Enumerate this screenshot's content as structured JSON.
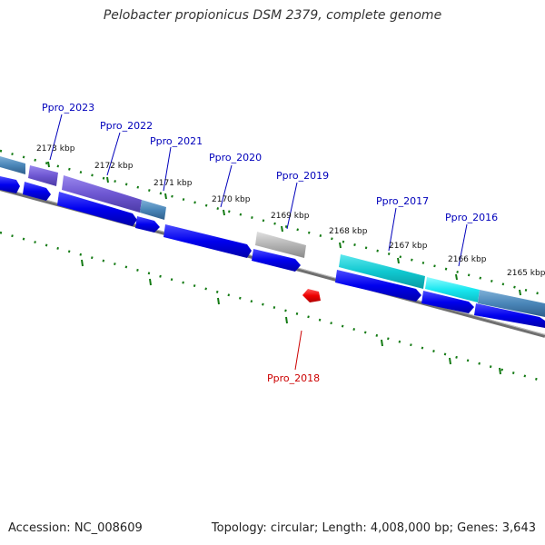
{
  "title": "Pelobacter propionicus DSM 2379, complete genome",
  "footer": {
    "accession": "Accession: NC_008609",
    "summary": "Topology: circular; Length: 4,008,000 bp; Genes: 3,643"
  },
  "colors": {
    "forward_strand": "#0000ee",
    "forward_highlight": "#5555ff",
    "purple_gene": "#6e57d2",
    "steel_gene": "#4a86b8",
    "grey_gene": "#b0b0b0",
    "cyan_gene": "#10c8d0",
    "reverse_gene": "#ee0000",
    "backbone": "#777777",
    "tick": "#137a13",
    "label_blue": "#0000bb",
    "label_red": "#cc0000"
  },
  "kbp_labels": [
    "2173 kbp",
    "2172 kbp",
    "2171 kbp",
    "2170 kbp",
    "2169 kbp",
    "2168 kbp",
    "2167 kbp",
    "2166 kbp",
    "2165 kbp"
  ],
  "gene_labels": [
    "Ppro_2023",
    "Ppro_2022",
    "Ppro_2021",
    "Ppro_2020",
    "Ppro_2019",
    "Ppro_2017",
    "Ppro_2016",
    "Ppro_2018"
  ]
}
